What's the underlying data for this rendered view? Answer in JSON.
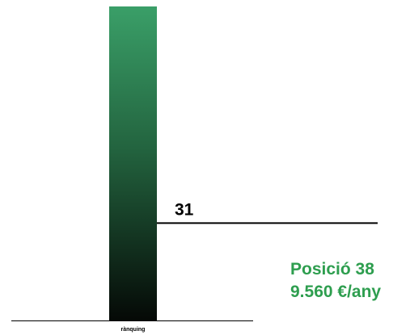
{
  "chart_data": {
    "type": "bar",
    "categories": [
      "rànquing"
    ],
    "values": [
      100
    ],
    "ylim": [
      0,
      100
    ],
    "reference_line": {
      "label": "31",
      "value": 31
    },
    "annotations": [
      "Posició 38",
      "9.560 €/any"
    ],
    "grid": false,
    "legend": "none",
    "colors": {
      "bar_top": "#3a9f68",
      "bar_bottom": "#050906",
      "reference_line": "#000000",
      "annotation": "#2e9e4f",
      "axis": "#000000"
    }
  }
}
